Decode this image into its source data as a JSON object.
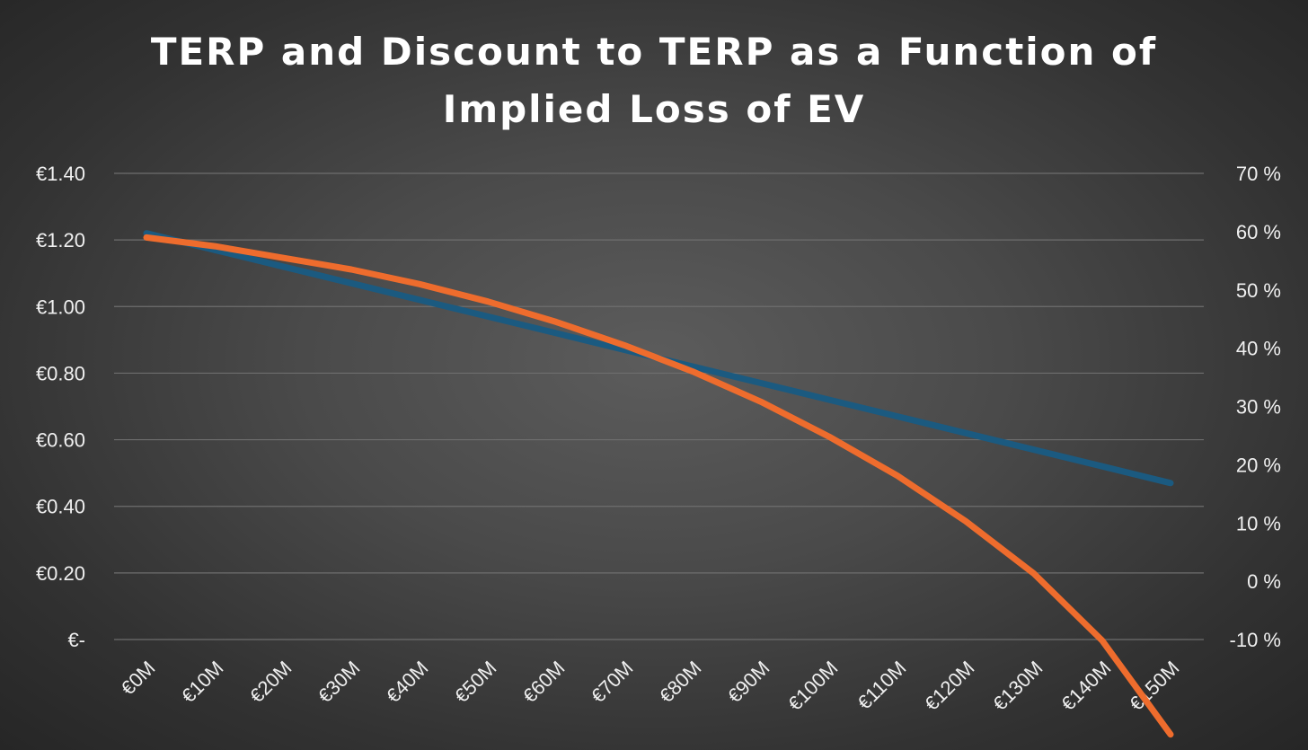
{
  "colors": {
    "terp": "#1b5a80",
    "discount": "#ee6c2d",
    "text": "#f0f0f0",
    "grid": "#6e6e6e"
  },
  "chart_data": {
    "type": "line",
    "title": [
      "TERP and Discount to TERP as a Function of",
      "Implied Loss of EV"
    ],
    "xlabel": "",
    "ylabel": "",
    "x": [
      "€0M",
      "€10M",
      "€20M",
      "€30M",
      "€40M",
      "€50M",
      "€60M",
      "€70M",
      "€80M",
      "€90M",
      "€100M",
      "€110M",
      "€120M",
      "€130M",
      "€140M",
      "€150M"
    ],
    "y_left": {
      "range": [
        0,
        1.4
      ],
      "ticks": [
        0,
        0.2,
        0.4,
        0.6,
        0.8,
        1.0,
        1.2,
        1.4
      ],
      "tick_labels": [
        "€-",
        "€0.20",
        "€0.40",
        "€0.60",
        "€0.80",
        "€1.00",
        "€1.20",
        "€1.40"
      ]
    },
    "y_right": {
      "range": [
        -10,
        70
      ],
      "ticks": [
        -10,
        0,
        10,
        20,
        30,
        40,
        50,
        60,
        70
      ],
      "tick_labels": [
        "-10 %",
        "0 %",
        "10 %",
        "20 %",
        "30 %",
        "40 %",
        "50 %",
        "60 %",
        "70 %"
      ]
    },
    "grid": true,
    "legend": "none",
    "series": [
      {
        "name": "TERP",
        "axis": "left",
        "values": [
          1.22,
          1.17,
          1.12,
          1.07,
          1.02,
          0.97,
          0.92,
          0.87,
          0.82,
          0.77,
          0.72,
          0.67,
          0.62,
          0.57,
          0.52,
          0.47
        ]
      },
      {
        "name": "Discount to TERP",
        "axis": "right",
        "values": [
          59,
          57.5,
          55.5,
          53.5,
          51,
          48,
          44.5,
          40.5,
          36,
          30.8,
          24.8,
          18.1,
          10.3,
          1.3,
          -10.2,
          -26.3
        ]
      }
    ]
  }
}
